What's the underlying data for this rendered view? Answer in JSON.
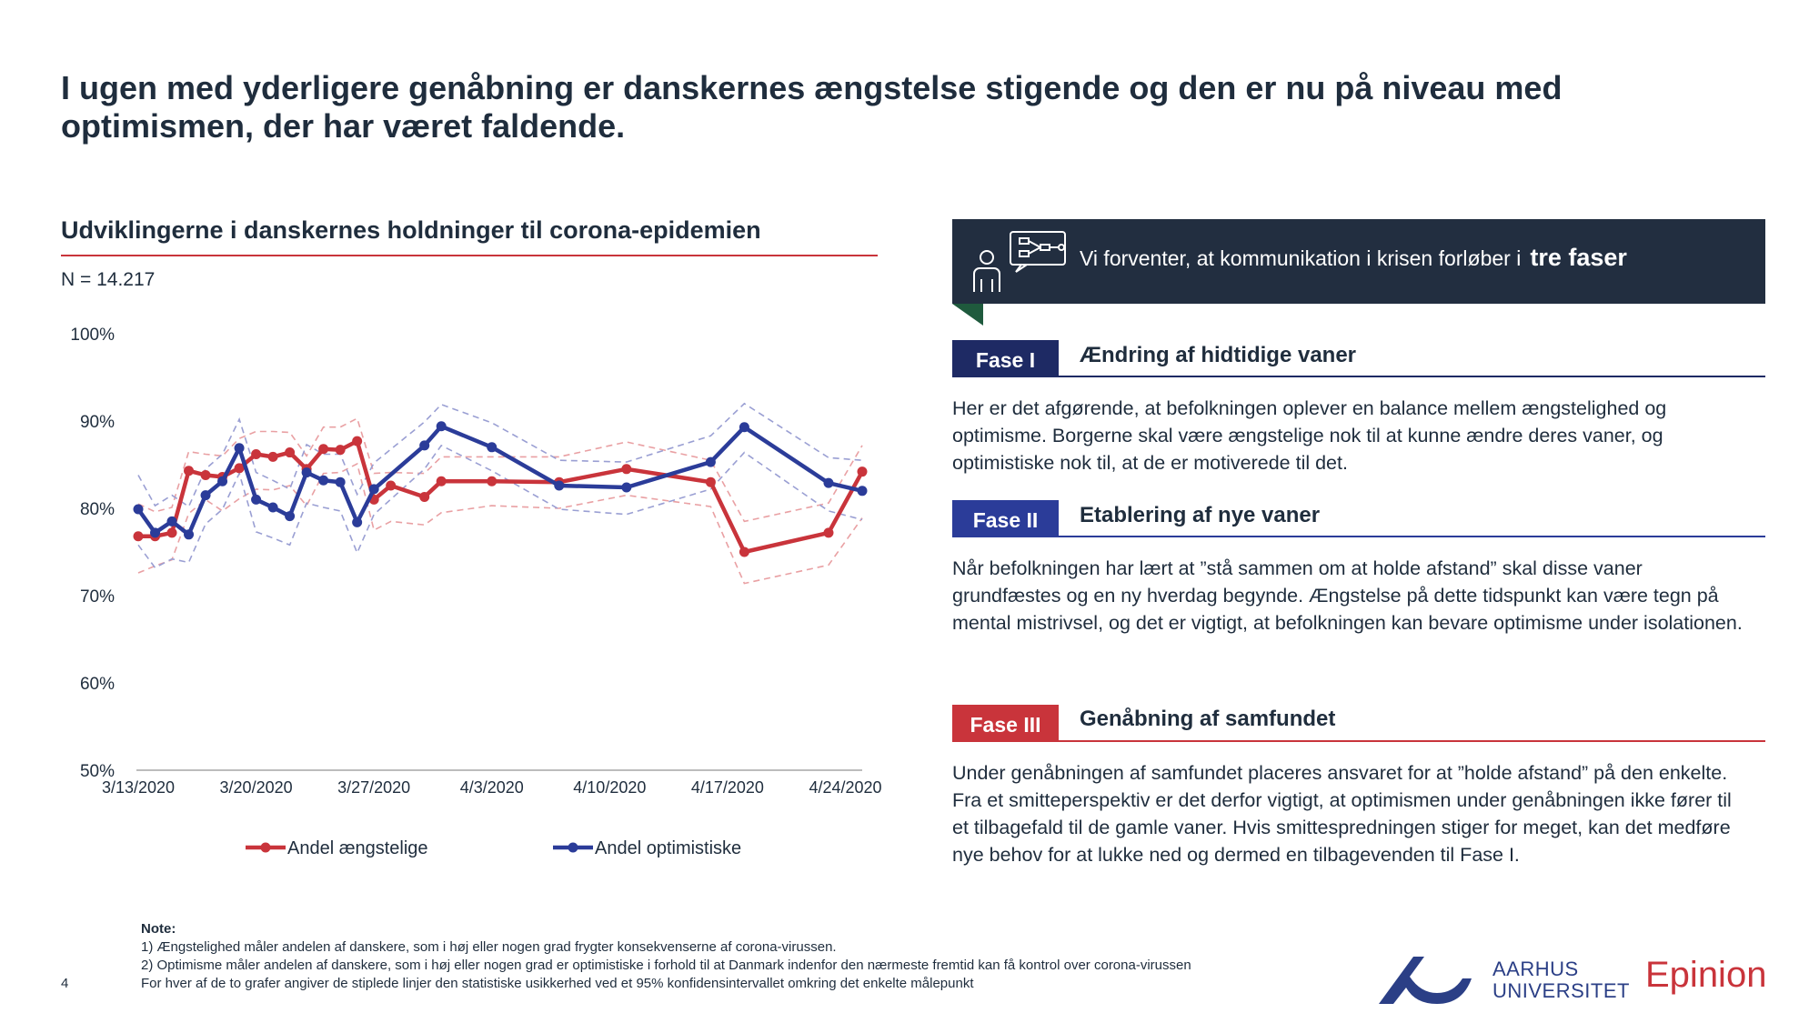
{
  "title": "I ugen med yderligere genåbning er danskernes ængstelse stigende og den er nu på niveau med optimismen, der har været faldende.",
  "chart_section": {
    "title": "Udviklingerne i danskernes holdninger til corona-epidemien",
    "n_label": "N = 14.217"
  },
  "chart_data": {
    "type": "line",
    "x_axis": {
      "type": "date",
      "min": "2020-03-13",
      "max": "2020-04-25",
      "tick_labels": [
        "3/13/2020",
        "3/20/2020",
        "3/27/2020",
        "4/3/2020",
        "4/10/2020",
        "4/17/2020",
        "4/24/2020"
      ]
    },
    "y_axis": {
      "min": 0.5,
      "max": 1.0,
      "tick_labels": [
        "50%",
        "60%",
        "70%",
        "80%",
        "90%",
        "100%"
      ],
      "ticks": [
        0.5,
        0.6,
        0.7,
        0.8,
        0.9,
        1.0
      ]
    },
    "grid": false,
    "legend_position": "bottom",
    "series": [
      {
        "name": "Andel ængstelige",
        "color": "#c9343b",
        "x": [
          "2020-03-13",
          "2020-03-14",
          "2020-03-15",
          "2020-03-16",
          "2020-03-17",
          "2020-03-18",
          "2020-03-19",
          "2020-03-20",
          "2020-03-21",
          "2020-03-22",
          "2020-03-23",
          "2020-03-24",
          "2020-03-25",
          "2020-03-26",
          "2020-03-27",
          "2020-03-28",
          "2020-03-30",
          "2020-03-31",
          "2020-04-03",
          "2020-04-07",
          "2020-04-11",
          "2020-04-16",
          "2020-04-18",
          "2020-04-23",
          "2020-04-25"
        ],
        "y": [
          0.768,
          0.768,
          0.772,
          0.843,
          0.838,
          0.836,
          0.846,
          0.862,
          0.859,
          0.864,
          0.845,
          0.868,
          0.867,
          0.877,
          0.81,
          0.826,
          0.813,
          0.831,
          0.831,
          0.83,
          0.845,
          0.83,
          0.75,
          0.772,
          0.842
        ],
        "ci_lower": [
          0.726,
          0.734,
          0.741,
          0.794,
          0.81,
          0.797,
          0.811,
          0.822,
          0.821,
          0.826,
          0.803,
          0.84,
          0.841,
          0.851,
          0.775,
          0.785,
          0.781,
          0.795,
          0.803,
          0.8,
          0.815,
          0.802,
          0.714,
          0.735,
          0.789
        ],
        "ci_upper": [
          0.805,
          0.796,
          0.801,
          0.865,
          0.862,
          0.86,
          0.88,
          0.888,
          0.888,
          0.887,
          0.86,
          0.893,
          0.893,
          0.903,
          0.84,
          0.841,
          0.84,
          0.859,
          0.859,
          0.859,
          0.876,
          0.855,
          0.785,
          0.806,
          0.872
        ]
      },
      {
        "name": "Andel optimistiske",
        "color": "#2b3c99",
        "x": [
          "2020-03-13",
          "2020-03-14",
          "2020-03-15",
          "2020-03-16",
          "2020-03-17",
          "2020-03-18",
          "2020-03-19",
          "2020-03-20",
          "2020-03-21",
          "2020-03-22",
          "2020-03-23",
          "2020-03-24",
          "2020-03-25",
          "2020-03-26",
          "2020-03-27",
          "2020-03-30",
          "2020-03-31",
          "2020-04-03",
          "2020-04-07",
          "2020-04-11",
          "2020-04-16",
          "2020-04-18",
          "2020-04-23",
          "2020-04-25"
        ],
        "y": [
          0.799,
          0.772,
          0.785,
          0.77,
          0.815,
          0.831,
          0.869,
          0.81,
          0.801,
          0.791,
          0.841,
          0.832,
          0.83,
          0.784,
          0.822,
          0.872,
          0.894,
          0.87,
          0.826,
          0.824,
          0.853,
          0.893,
          0.829,
          0.82
        ],
        "ci_lower": [
          0.758,
          0.732,
          0.742,
          0.738,
          0.782,
          0.799,
          0.84,
          0.773,
          0.766,
          0.758,
          0.806,
          0.801,
          0.797,
          0.749,
          0.793,
          0.845,
          0.872,
          0.843,
          0.799,
          0.793,
          0.822,
          0.864,
          0.797,
          0.787
        ],
        "ci_upper": [
          0.838,
          0.803,
          0.815,
          0.802,
          0.845,
          0.862,
          0.902,
          0.841,
          0.832,
          0.822,
          0.873,
          0.862,
          0.862,
          0.816,
          0.852,
          0.899,
          0.919,
          0.898,
          0.855,
          0.853,
          0.883,
          0.92,
          0.858,
          0.855
        ]
      }
    ]
  },
  "banner": {
    "text": "Vi forventer, at kommunikation i krisen forløber i",
    "emphasis": "tre faser",
    "icon": "presenter-board-icon"
  },
  "phases": [
    {
      "tag": "Fase I",
      "title": "Ændring af hidtidige vaner",
      "color": "#1e2a64",
      "body": "Her er det afgørende, at befolkningen oplever en balance mellem ængstelighed og optimisme. Borgerne skal være ængstelige nok til at kunne ændre deres vaner, og optimistiske nok til, at de er motiverede til det."
    },
    {
      "tag": "Fase II",
      "title": "Etablering af nye vaner",
      "color": "#2b3c99",
      "body": "Når befolkningen har lært at ”stå sammen om at holde afstand” skal disse vaner grundfæstes og en ny hverdag begynde. Ængstelse på dette tidspunkt kan være tegn på mental mistrivsel, og det er vigtigt, at befolkningen kan bevare optimisme under isolationen."
    },
    {
      "tag": "Fase III",
      "title": "Genåbning af samfundet",
      "color": "#c9343b",
      "body": "Under genåbningen af samfundet placeres ansvaret for at ”holde afstand” på den enkelte. Fra et smitteperspektiv er det derfor vigtigt, at optimismen under genåbningen ikke fører til et tilbagefald til de gamle vaner. Hvis smittespredningen stiger for meget, kan det medføre nye behov for at lukke ned og dermed en tilbagevenden til Fase I."
    }
  ],
  "note": {
    "label": "Note:",
    "lines": [
      "1) Ængstelighed måler andelen af danskere, som i høj eller nogen grad frygter konsekvenserne af corona-virussen.",
      "2) Optimisme måler andelen af danskere, som i høj eller nogen grad er optimistiske i forhold til at Danmark indenfor den nærmeste fremtid kan få kontrol over corona-virussen",
      "For hver af de to grafer angiver de stiplede linjer den statistiske usikkerhed ved et 95% konfidensintervallet omkring det enkelte målepunkt"
    ]
  },
  "footer": {
    "page_number": "4",
    "au_line1": "AARHUS",
    "au_line2": "UNIVERSITET",
    "epinion": "Epinion",
    "brand_red": "#c9343b",
    "brand_blue": "#2b3f86"
  }
}
